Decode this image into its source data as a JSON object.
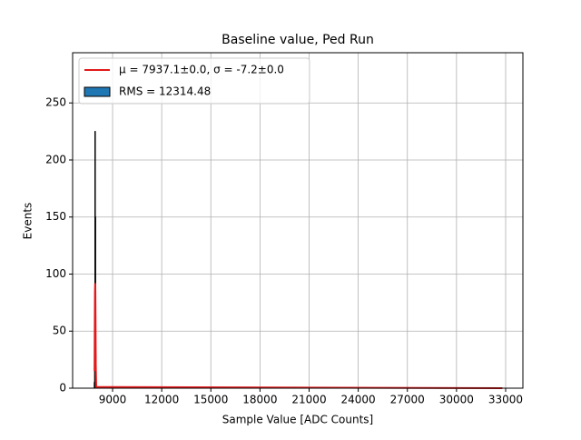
{
  "chart_data": {
    "type": "histogram",
    "title": "Baseline value, Ped Run",
    "xlabel": "Sample Value [ADC Counts]",
    "ylabel": "Events",
    "xlim": [
      6560,
      34054
    ],
    "ylim": [
      0,
      294
    ],
    "xticks": [
      9000,
      12000,
      15000,
      18000,
      21000,
      24000,
      27000,
      30000,
      33000
    ],
    "yticks": [
      0,
      50,
      100,
      150,
      200,
      250
    ],
    "grid": true,
    "legend": "upper left",
    "series": [
      {
        "name": "μ = 7937.1±0.0, σ = -7.2±0.0",
        "type": "line",
        "color": "#e31a1c",
        "x": [
          7900,
          7915,
          7925,
          7937,
          7949,
          7960,
          7975,
          8000,
          32800
        ],
        "values": [
          15,
          60,
          85,
          92,
          85,
          60,
          20,
          1,
          0
        ]
      },
      {
        "name": "RMS = 12314.48",
        "type": "hist",
        "color": "#1f77b4",
        "edgecolor": "#000000",
        "bins": [
          7880,
          7900,
          7920,
          7940,
          7960,
          7980,
          8000,
          32800
        ],
        "values": [
          5,
          40,
          225,
          150,
          30,
          2,
          0
        ]
      }
    ]
  }
}
